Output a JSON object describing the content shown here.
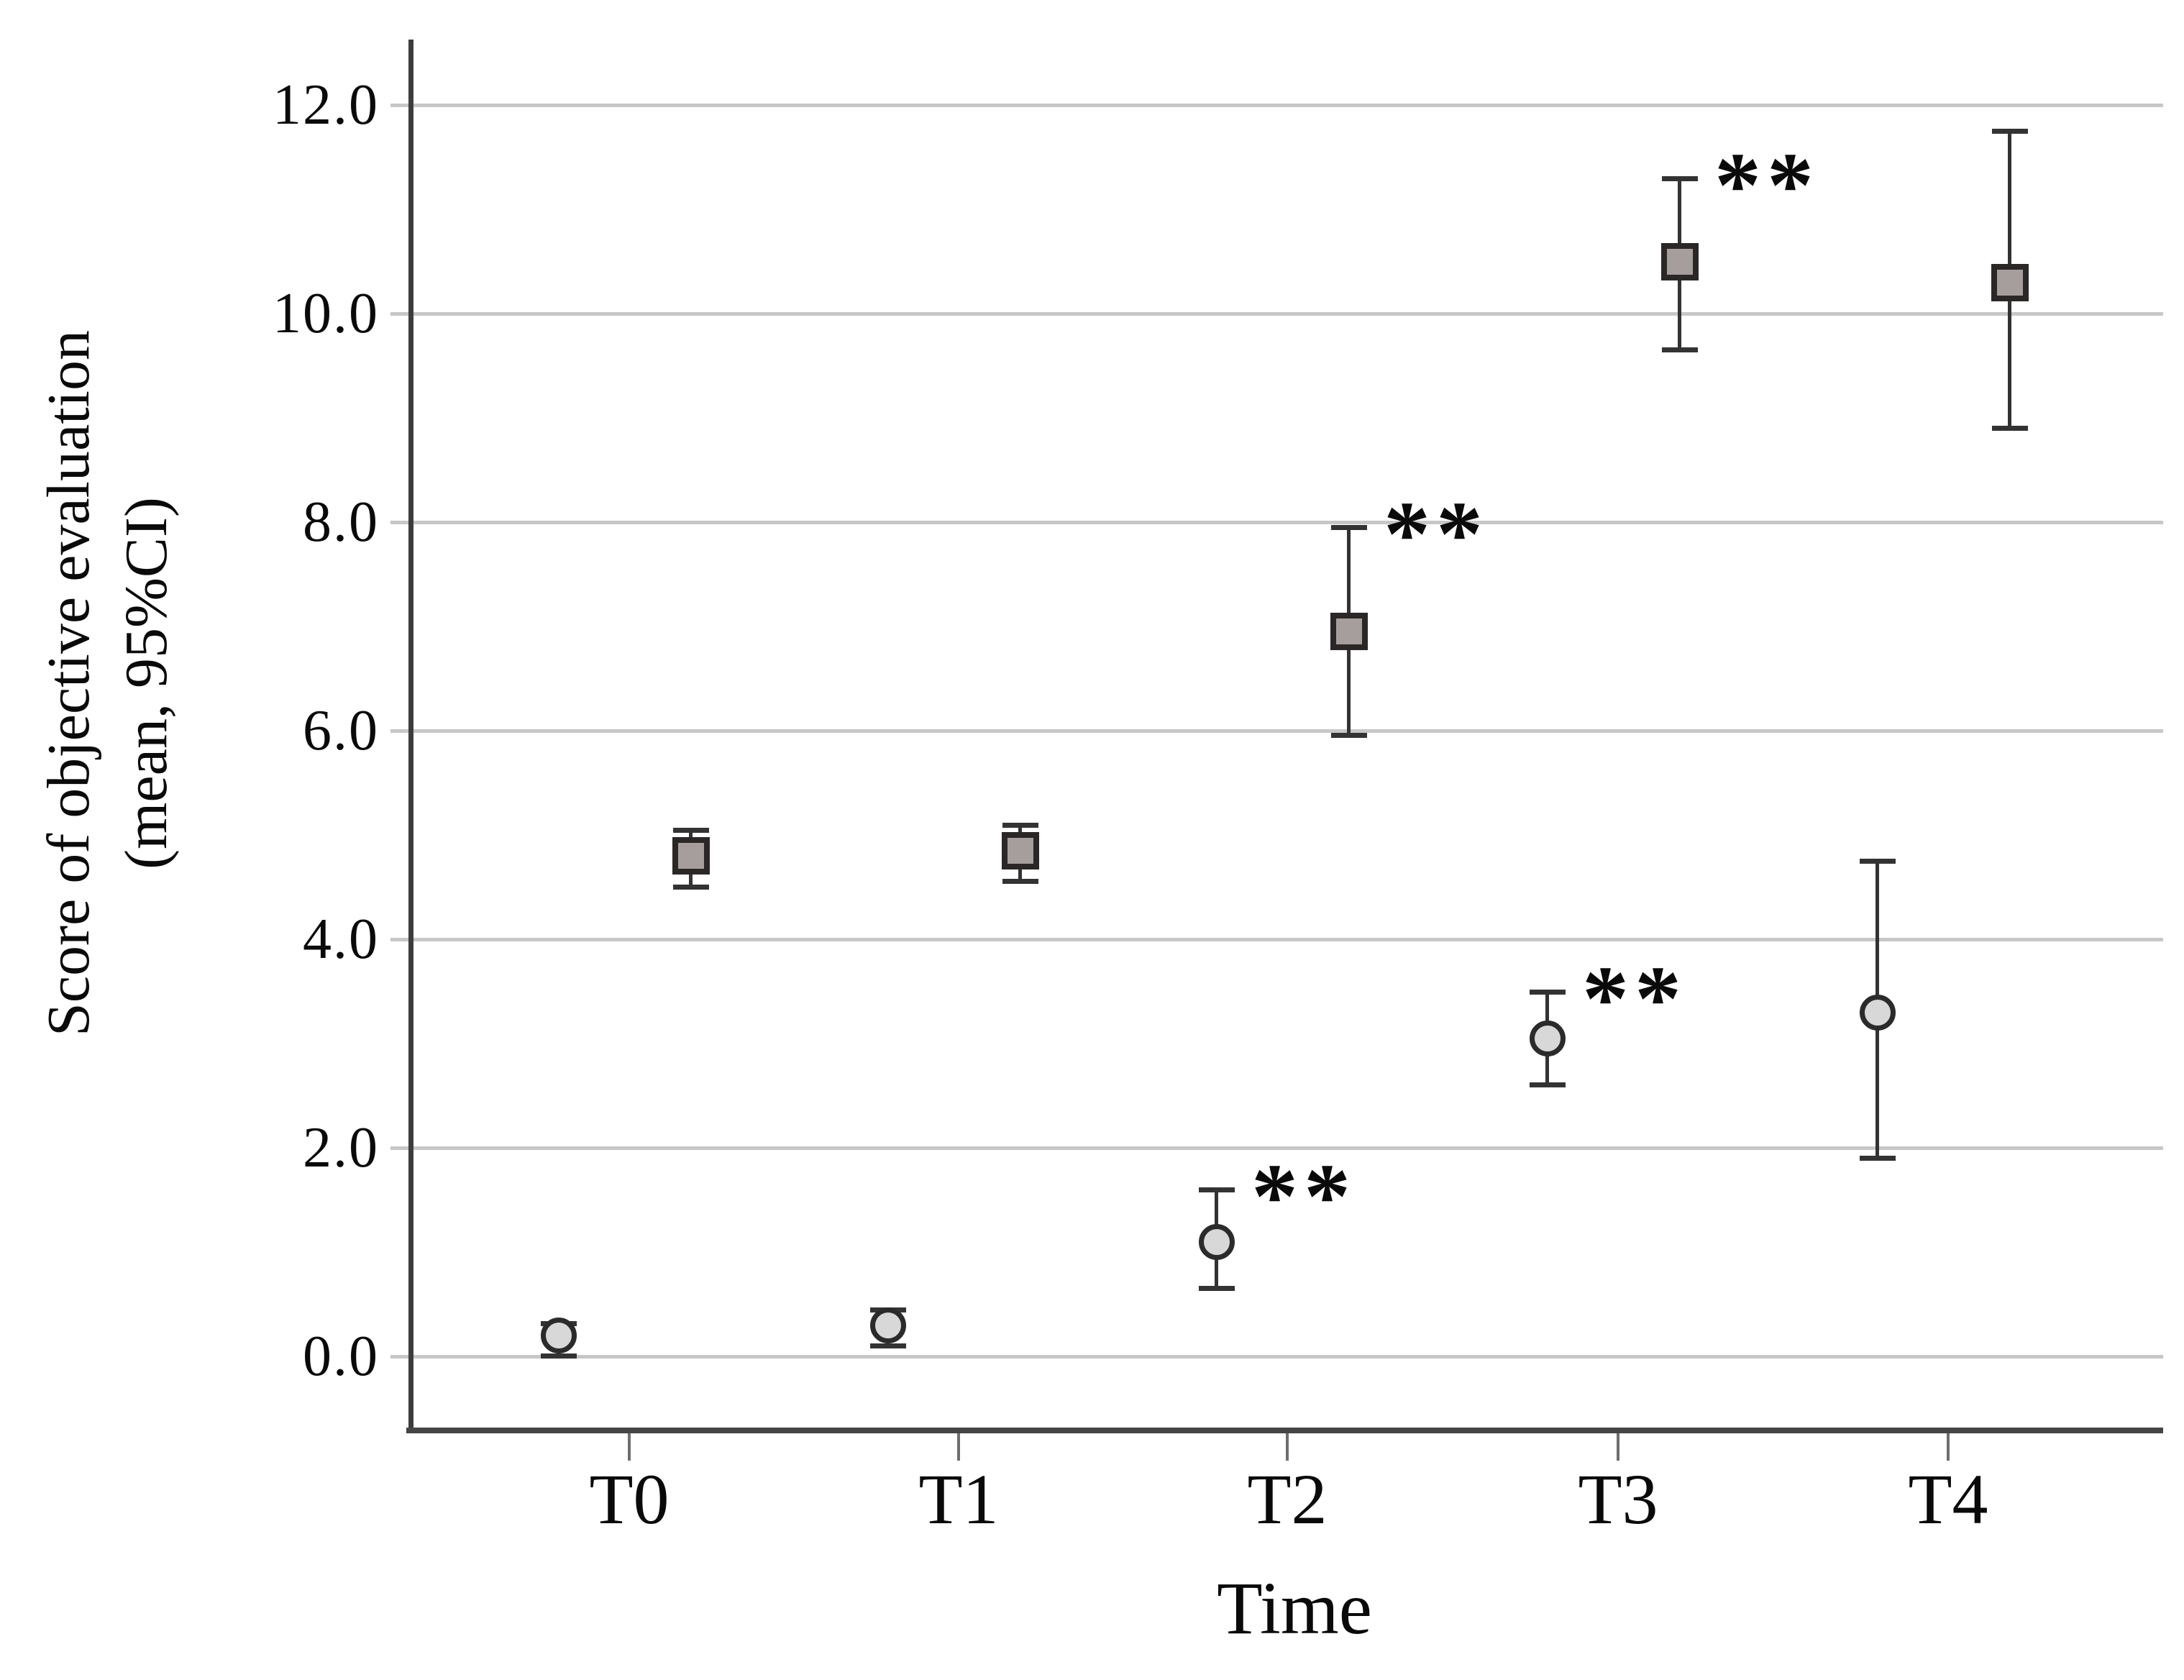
{
  "figure": {
    "x_axis_title": "Time",
    "y_axis_title_line1": "Score of objective evaluation",
    "y_axis_title_line2": "(mean, 95%CI)"
  },
  "chart_data": {
    "type": "scatter",
    "title": "",
    "xlabel": "Time",
    "ylabel": "Score of objective evaluation (mean, 95%CI)",
    "categories": [
      "T0",
      "T1",
      "T2",
      "T3",
      "T4"
    ],
    "y_axis": {
      "tick_values": [
        12.0,
        10.0,
        8.0,
        6.0,
        4.0,
        2.0,
        0.0
      ],
      "tick_labels": [
        "12.0",
        "10.0",
        "8.0",
        "6.0",
        "4.0",
        "2.0",
        "0.0"
      ],
      "range": [
        -0.7,
        12.7
      ]
    },
    "grid": "horizontal-only",
    "legend": "none",
    "significance_symbol": "**",
    "series": [
      {
        "name": "square-series",
        "marker": "square",
        "fill_color": "#a69e9d",
        "stroke_color": "#2b2727",
        "points": [
          {
            "x": "T0",
            "mean": 4.8,
            "ci_low": 4.5,
            "ci_high": 5.05,
            "significant": false
          },
          {
            "x": "T1",
            "mean": 4.85,
            "ci_low": 4.55,
            "ci_high": 5.1,
            "significant": false
          },
          {
            "x": "T2",
            "mean": 6.95,
            "ci_low": 5.95,
            "ci_high": 7.95,
            "significant": true
          },
          {
            "x": "T3",
            "mean": 10.5,
            "ci_low": 9.65,
            "ci_high": 11.3,
            "significant": true
          },
          {
            "x": "T4",
            "mean": 10.3,
            "ci_low": 8.9,
            "ci_high": 11.75,
            "significant": false
          }
        ]
      },
      {
        "name": "circle-series",
        "marker": "circle",
        "fill_color": "#d8d8d8",
        "stroke_color": "#2b2b2b",
        "points": [
          {
            "x": "T0",
            "mean": 0.2,
            "ci_low": 0.0,
            "ci_high": 0.32,
            "significant": false
          },
          {
            "x": "T1",
            "mean": 0.3,
            "ci_low": 0.1,
            "ci_high": 0.45,
            "significant": false
          },
          {
            "x": "T2",
            "mean": 1.1,
            "ci_low": 0.65,
            "ci_high": 1.6,
            "significant": true
          },
          {
            "x": "T3",
            "mean": 3.05,
            "ci_low": 2.6,
            "ci_high": 3.5,
            "significant": true
          },
          {
            "x": "T4",
            "mean": 3.3,
            "ci_low": 1.9,
            "ci_high": 4.75,
            "significant": false
          }
        ]
      }
    ]
  }
}
